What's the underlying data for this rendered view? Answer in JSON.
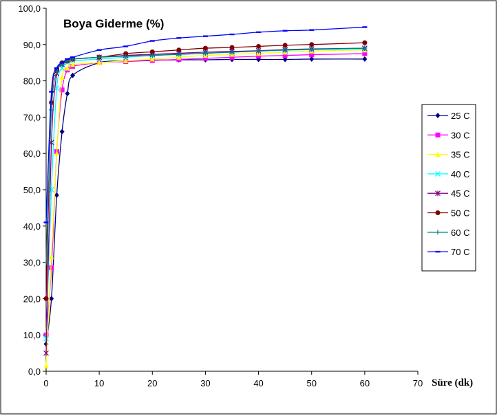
{
  "chart_data": {
    "type": "line",
    "title": "Boya Giderme (%)",
    "xlabel": "Süre (dk)",
    "ylabel": "",
    "xlim": [
      0,
      70
    ],
    "ylim": [
      0,
      100
    ],
    "x_ticks": [
      0,
      10,
      20,
      30,
      40,
      50,
      60,
      70
    ],
    "x_tick_labels": [
      "0",
      "10",
      "20",
      "30",
      "40",
      "50",
      "60",
      "70"
    ],
    "y_ticks": [
      0,
      10,
      20,
      30,
      40,
      50,
      60,
      70,
      80,
      90,
      100
    ],
    "y_tick_labels": [
      "0,0",
      "10,0",
      "20,0",
      "30,0",
      "40,0",
      "50,0",
      "60,0",
      "70,0",
      "80,0",
      "90,0",
      "100,0"
    ],
    "grid": false,
    "legend_position": "right",
    "x": [
      0,
      1,
      2,
      3,
      4,
      5,
      10,
      15,
      20,
      25,
      30,
      35,
      40,
      45,
      50,
      60
    ],
    "series": [
      {
        "name": "25 C",
        "color": "#000080",
        "marker": "diamond",
        "values": [
          7.5,
          20.0,
          48.5,
          66.0,
          76.5,
          81.5,
          85.0,
          85.5,
          85.7,
          85.8,
          85.8,
          85.9,
          85.9,
          85.9,
          86.0,
          86.0
        ]
      },
      {
        "name": "30 C",
        "color": "#FF00FF",
        "marker": "square",
        "values": [
          10.0,
          28.5,
          60.5,
          77.5,
          83.0,
          84.0,
          85.0,
          85.3,
          85.6,
          85.9,
          86.2,
          86.5,
          86.8,
          87.0,
          87.2,
          87.5
        ]
      },
      {
        "name": "35 C",
        "color": "#FFFF00",
        "marker": "triangle",
        "values": [
          1.5,
          31.5,
          60.0,
          81.0,
          83.5,
          84.5,
          85.0,
          85.5,
          86.0,
          86.5,
          87.0,
          87.3,
          87.6,
          87.9,
          88.2,
          88.5
        ]
      },
      {
        "name": "40 C",
        "color": "#00FFFF",
        "marker": "x",
        "values": [
          9.0,
          50.0,
          78.0,
          83.5,
          85.0,
          85.5,
          86.0,
          86.5,
          87.0,
          87.3,
          87.6,
          87.9,
          88.2,
          88.4,
          88.6,
          88.8
        ]
      },
      {
        "name": "45 C",
        "color": "#800080",
        "marker": "star",
        "values": [
          5.0,
          63.0,
          82.0,
          84.5,
          85.5,
          86.0,
          86.5,
          87.0,
          87.3,
          87.6,
          87.9,
          88.1,
          88.3,
          88.6,
          88.8,
          89.0
        ]
      },
      {
        "name": "50 C",
        "color": "#800000",
        "marker": "circle",
        "values": [
          20.0,
          74.0,
          83.0,
          85.0,
          85.5,
          86.0,
          86.5,
          87.5,
          88.0,
          88.5,
          89.0,
          89.2,
          89.5,
          89.8,
          90.0,
          90.5
        ]
      },
      {
        "name": "60 C",
        "color": "#008080",
        "marker": "plus",
        "values": [
          30.0,
          72.0,
          82.5,
          84.5,
          85.5,
          86.0,
          86.5,
          86.8,
          87.0,
          87.3,
          87.6,
          87.9,
          88.2,
          88.5,
          88.7,
          89.0
        ]
      },
      {
        "name": "70 C",
        "color": "#0000FF",
        "marker": "dash",
        "values": [
          41.0,
          77.0,
          83.5,
          85.0,
          86.0,
          86.5,
          88.5,
          89.5,
          91.0,
          91.8,
          92.3,
          92.8,
          93.4,
          93.8,
          94.0,
          94.8
        ]
      }
    ]
  }
}
